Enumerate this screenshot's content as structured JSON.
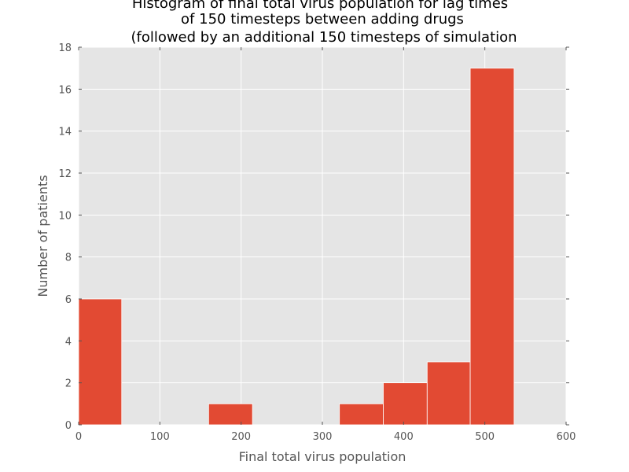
{
  "chart_data": {
    "type": "bar",
    "title_lines": [
      "Histogram of final total virus population for lag times",
      "of 150 timesteps between adding drugs",
      "(followed by an additional 150 timesteps of simulation"
    ],
    "xlabel": "Final total virus population",
    "ylabel": "Number of patients",
    "xlim": [
      0,
      600
    ],
    "ylim": [
      0,
      18
    ],
    "xticks": [
      0,
      100,
      200,
      300,
      400,
      500,
      600
    ],
    "yticks": [
      0,
      2,
      4,
      6,
      8,
      10,
      12,
      14,
      16,
      18
    ],
    "bins": [
      {
        "x0": 0,
        "x1": 53,
        "count": 6
      },
      {
        "x0": 53,
        "x1": 107,
        "count": 0
      },
      {
        "x0": 107,
        "x1": 160,
        "count": 0
      },
      {
        "x0": 160,
        "x1": 214,
        "count": 1
      },
      {
        "x0": 214,
        "x1": 268,
        "count": 0
      },
      {
        "x0": 268,
        "x1": 321,
        "count": 0
      },
      {
        "x0": 321,
        "x1": 375,
        "count": 1
      },
      {
        "x0": 375,
        "x1": 429,
        "count": 2
      },
      {
        "x0": 429,
        "x1": 482,
        "count": 3
      },
      {
        "x0": 482,
        "x1": 536,
        "count": 17
      }
    ],
    "grid": true,
    "colors": {
      "bar": "#E24A33",
      "plot_background": "#E5E5E5",
      "grid": "#FFFFFF"
    }
  }
}
